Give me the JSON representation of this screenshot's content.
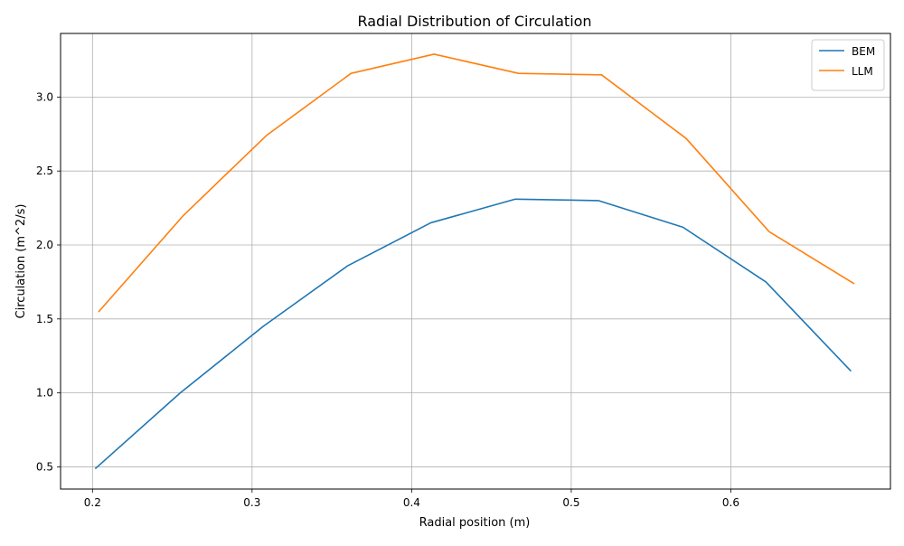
{
  "chart_data": {
    "type": "line",
    "title": "Radial Distribution of Circulation",
    "xlabel": "Radial position (m)",
    "ylabel": "Circulation (m^2/s)",
    "xlim": [
      0.18,
      0.7
    ],
    "ylim": [
      0.35,
      3.43
    ],
    "xticks": [
      0.2,
      0.3,
      0.4,
      0.5,
      0.6
    ],
    "xtick_labels": [
      "0.2",
      "0.3",
      "0.4",
      "0.5",
      "0.6"
    ],
    "yticks": [
      0.5,
      1.0,
      1.5,
      2.0,
      2.5,
      3.0
    ],
    "ytick_labels": [
      "0.5",
      "1.0",
      "1.5",
      "2.0",
      "2.5",
      "3.0"
    ],
    "grid": true,
    "legend_position": "top-right",
    "series": [
      {
        "name": "BEM",
        "color": "#1f77b4",
        "x": [
          0.202,
          0.255,
          0.307,
          0.36,
          0.412,
          0.465,
          0.517,
          0.57,
          0.622,
          0.675
        ],
        "y": [
          0.49,
          1.0,
          1.45,
          1.86,
          2.15,
          2.31,
          2.3,
          2.12,
          1.75,
          1.15
        ]
      },
      {
        "name": "LLM",
        "color": "#ff7f0e",
        "x": [
          0.204,
          0.257,
          0.309,
          0.362,
          0.414,
          0.467,
          0.519,
          0.572,
          0.624,
          0.677
        ],
        "y": [
          1.55,
          2.2,
          2.74,
          3.16,
          3.29,
          3.16,
          3.15,
          2.72,
          2.09,
          1.74
        ]
      }
    ]
  }
}
